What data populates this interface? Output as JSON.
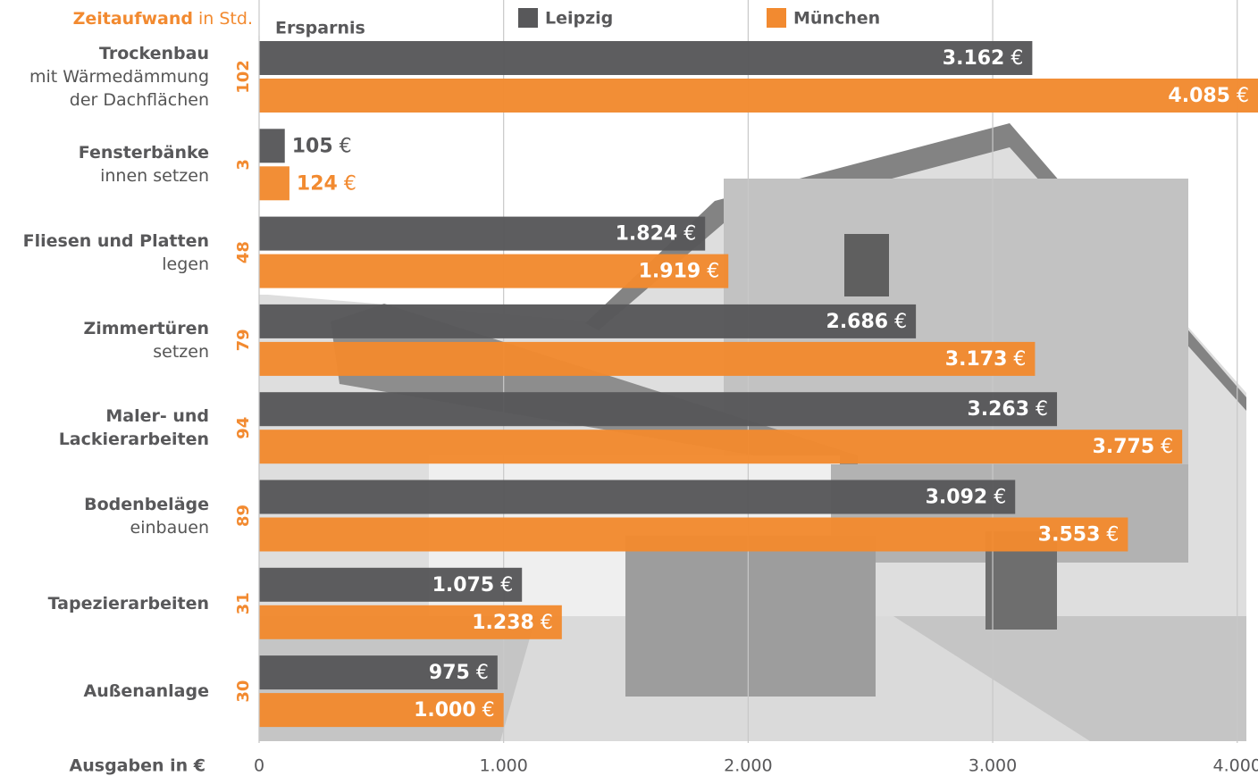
{
  "chart_data": {
    "type": "bar",
    "orientation": "horizontal",
    "title": "Zeitaufwand",
    "title_suffix": "in Std.",
    "subtitle": "Ersparnis",
    "x_label": "Ausgaben in €",
    "unit": "€",
    "categories": [
      "Trockenbau",
      "Fensterbänke",
      "Fliesen und Platten",
      "Zimmertüren",
      "Maler- und Lackierarbeiten",
      "Bodenbeläge",
      "Tapezierarbeiten",
      "Außenanlage"
    ],
    "category_details": [
      [
        "mit Wärmedämmung",
        "der Dachflächen"
      ],
      [
        "innen setzen"
      ],
      [
        "legen"
      ],
      [
        "setzen"
      ],
      [],
      [
        "einbauen"
      ],
      [],
      []
    ],
    "hours": [
      102,
      3,
      48,
      79,
      94,
      89,
      31,
      30
    ],
    "series": [
      {
        "name": "Leipzig",
        "color": "#58585a",
        "values": [
          3162,
          105,
          1824,
          2686,
          3263,
          3092,
          1075,
          975
        ],
        "value_labels": [
          "3.162",
          "105",
          "1.824",
          "2.686",
          "3.263",
          "3.092",
          "1.075",
          "975"
        ]
      },
      {
        "name": "München",
        "color": "#f28a30",
        "values": [
          4085,
          124,
          1919,
          3173,
          3775,
          3553,
          1238,
          1000
        ],
        "value_labels": [
          "4.085",
          "124",
          "1.919",
          "3.173",
          "3.775",
          "3.553",
          "1.238",
          "1.000"
        ]
      }
    ],
    "xlim": [
      0,
      4085
    ],
    "xticks": [
      0,
      {
        "value": 1000,
        "label": "1.000"
      },
      {
        "value": 2000,
        "label": "2.000"
      },
      {
        "value": 3000,
        "label": "3.000"
      },
      {
        "value": 4000,
        "label": "4.000"
      }
    ],
    "grid": true
  }
}
